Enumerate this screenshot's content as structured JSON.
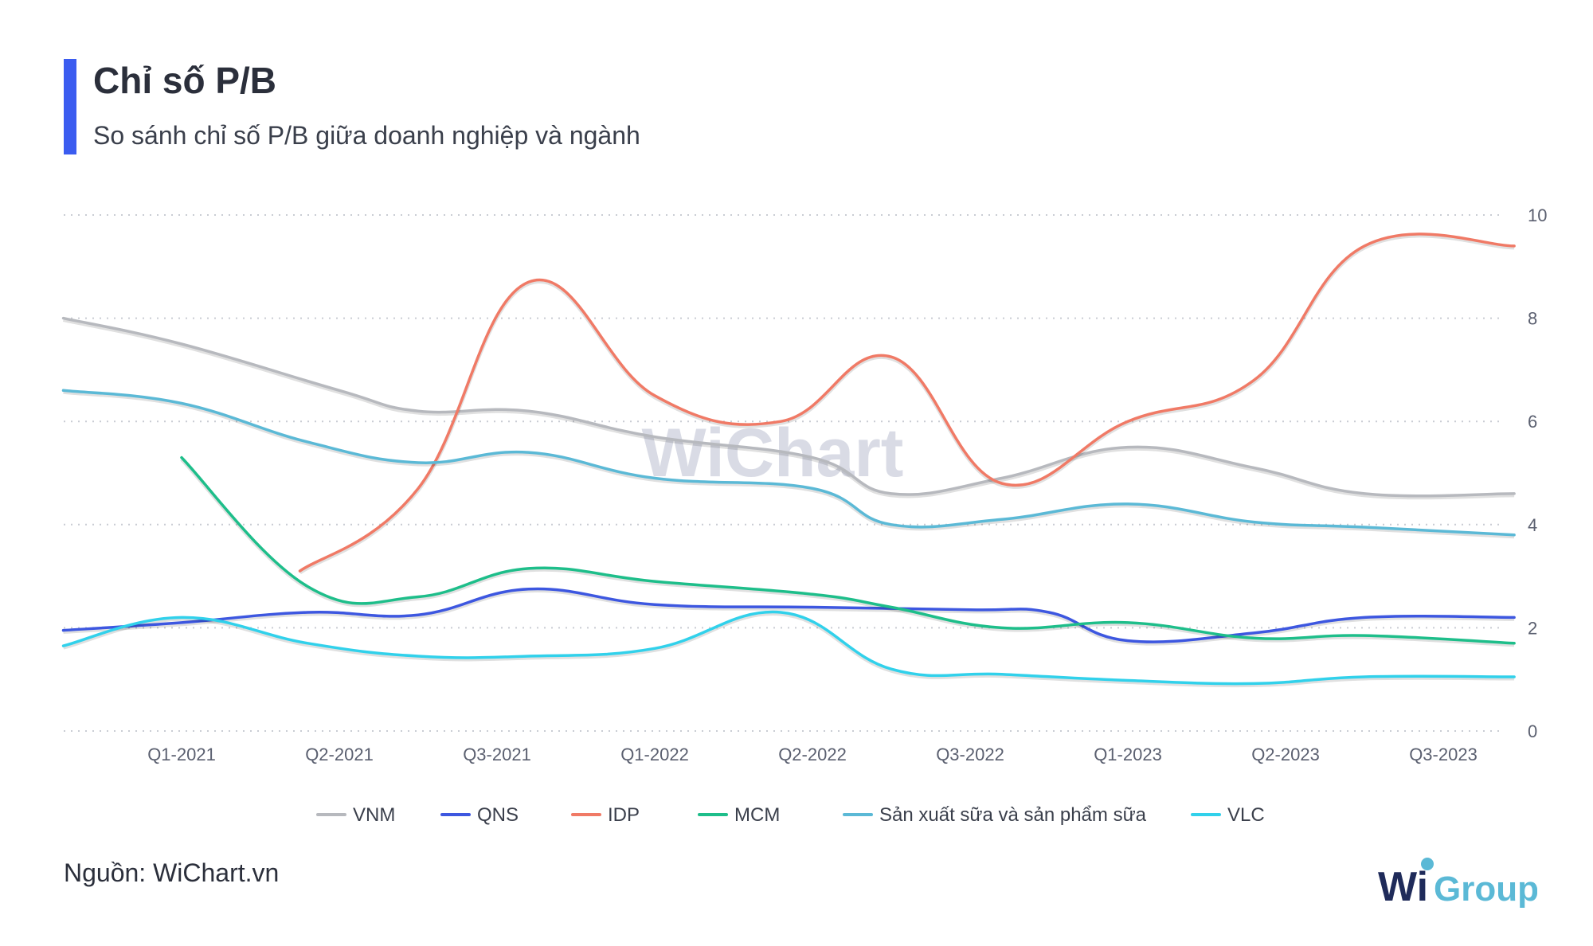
{
  "header": {
    "title": "Chỉ số P/B",
    "subtitle": "So sánh chỉ số P/B giữa doanh nghiệp và ngành"
  },
  "footer": {
    "source": "Nguồn: WiChart.vn",
    "logo_text_wi": "Wi",
    "logo_text_group": "Group"
  },
  "watermark": "WiChart",
  "colors": {
    "accent": "#3b5cf0",
    "grid": "#c9ccd3",
    "axis_text": "#5b6070"
  },
  "chart_data": {
    "type": "line",
    "title": "Chỉ số P/B",
    "subtitle": "So sánh chỉ số P/B giữa doanh nghiệp và ngành",
    "x_ticks": [
      "Q1-2021",
      "Q2-2021",
      "Q3-2021",
      "Q1-2022",
      "Q2-2022",
      "Q3-2022",
      "Q1-2023",
      "Q2-2023",
      "Q3-2023"
    ],
    "ylim": [
      0,
      10
    ],
    "y_ticks": [
      0,
      2,
      4,
      6,
      8,
      10
    ],
    "y_axis_side": "right",
    "grid": true,
    "legend_position": "bottom",
    "series": [
      {
        "name": "VNM",
        "color": "#b7b9be",
        "x": [
          -0.75,
          0,
          1,
          1.5,
          2.2,
          3,
          4,
          4.5,
          5.2,
          6,
          6.8,
          7.5,
          8.45
        ],
        "values": [
          8.0,
          7.5,
          6.6,
          6.2,
          6.2,
          5.7,
          5.3,
          4.6,
          4.9,
          5.5,
          5.1,
          4.6,
          4.6
        ]
      },
      {
        "name": "QNS",
        "color": "#3d57e0",
        "x": [
          -0.75,
          0,
          0.8,
          1.5,
          2.2,
          3,
          4,
          5,
          5.5,
          6,
          6.8,
          7.5,
          8.45
        ],
        "values": [
          1.95,
          2.1,
          2.3,
          2.25,
          2.75,
          2.45,
          2.4,
          2.35,
          2.3,
          1.75,
          1.9,
          2.2,
          2.2
        ]
      },
      {
        "name": "IDP",
        "color": "#f07a66",
        "x": [
          0.75,
          1.5,
          2.2,
          3,
          3.8,
          4.5,
          5.2,
          6,
          6.8,
          7.5,
          8.45
        ],
        "values": [
          3.1,
          4.7,
          8.7,
          6.5,
          6.0,
          7.25,
          4.8,
          6.0,
          6.8,
          9.4,
          9.4
        ]
      },
      {
        "name": "MCM",
        "color": "#1ebe8a",
        "x": [
          0,
          0.8,
          1.5,
          2.2,
          3,
          4,
          4.5,
          5.2,
          6,
          6.8,
          7.5,
          8.45
        ],
        "values": [
          5.3,
          2.8,
          2.6,
          3.15,
          2.9,
          2.65,
          2.4,
          2.0,
          2.1,
          1.8,
          1.85,
          1.7
        ]
      },
      {
        "name": "Sản xuất sữa và sản phẩm sữa",
        "color": "#5bb9d6",
        "x": [
          -0.75,
          0,
          0.8,
          1.5,
          2.2,
          3,
          4,
          4.5,
          5.2,
          6,
          6.8,
          7.5,
          8.45
        ],
        "values": [
          6.6,
          6.35,
          5.6,
          5.2,
          5.4,
          4.9,
          4.7,
          4.0,
          4.1,
          4.4,
          4.05,
          3.95,
          3.8
        ]
      },
      {
        "name": "VLC",
        "color": "#31d1eb",
        "x": [
          -0.75,
          0,
          0.8,
          1.5,
          2.2,
          3,
          3.8,
          4.5,
          5.2,
          6,
          6.8,
          7.5,
          8.45
        ],
        "values": [
          1.65,
          2.2,
          1.7,
          1.45,
          1.45,
          1.6,
          2.3,
          1.2,
          1.1,
          0.98,
          0.92,
          1.05,
          1.05
        ]
      }
    ]
  }
}
